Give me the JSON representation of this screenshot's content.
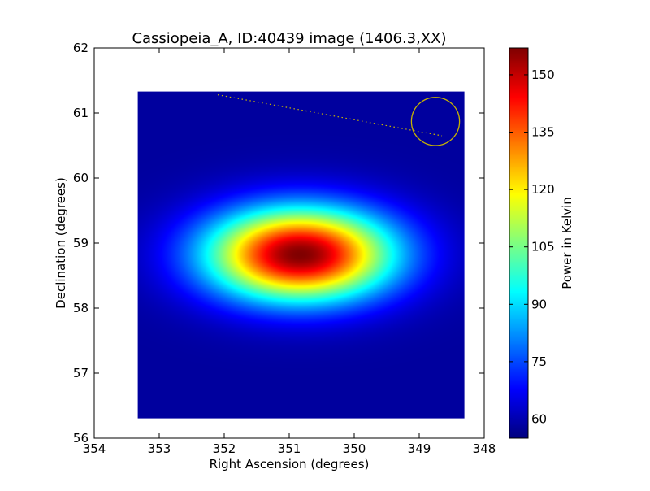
{
  "chart_data": {
    "type": "heatmap",
    "title": "Cassiopeia_A, ID:40439 image (1406.3,XX)",
    "xlabel": "Right Ascension (degrees)",
    "ylabel": "Declination (degrees)",
    "xlim": [
      354,
      348
    ],
    "ylim": [
      56,
      62
    ],
    "x_ticks": [
      354,
      353,
      352,
      351,
      350,
      349,
      348
    ],
    "y_ticks": [
      56,
      57,
      58,
      59,
      60,
      61,
      62
    ],
    "x_tick_labels": [
      "354",
      "353",
      "352",
      "351",
      "350",
      "349",
      "348"
    ],
    "y_tick_labels": [
      "56",
      "57",
      "58",
      "59",
      "60",
      "61",
      "62"
    ],
    "image_extent": {
      "ra": [
        353.33,
        348.3
      ],
      "dec": [
        56.3,
        61.33
      ]
    },
    "colormap": "jet",
    "colorbar": {
      "label": "Power in Kelvin",
      "min": 55,
      "max": 157,
      "ticks": [
        60,
        75,
        90,
        105,
        120,
        135,
        150
      ],
      "tick_labels": [
        "60",
        "75",
        "90",
        "105",
        "120",
        "135",
        "150"
      ]
    },
    "background_level": 58,
    "source": {
      "ra": 350.83,
      "dec": 58.82,
      "peak": 157,
      "sigma_ra": 1.0,
      "sigma_dec": 0.5
    },
    "beam_circle": {
      "ra": 348.75,
      "dec": 60.87,
      "radius_deg": 0.37,
      "color": "#c8b400"
    },
    "dotted_line": {
      "from": {
        "ra": 352.1,
        "dec": 61.28
      },
      "to": {
        "ra": 348.65,
        "dec": 60.65
      },
      "color": "#c8b400"
    },
    "grid": false,
    "legend": "none"
  }
}
